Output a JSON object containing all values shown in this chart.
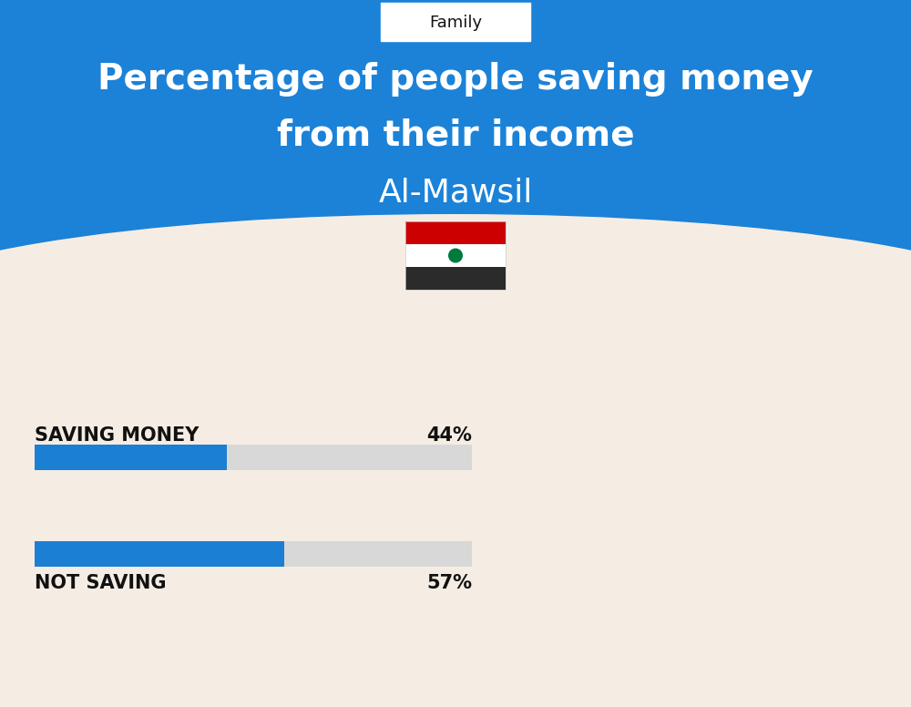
{
  "title_line1": "Percentage of people saving money",
  "title_line2": "from their income",
  "subtitle": "Al-Mawsil",
  "category_label": "Family",
  "bar1_label": "SAVING MONEY",
  "bar1_value": 44,
  "bar1_pct": "44%",
  "bar2_label": "NOT SAVING",
  "bar2_value": 57,
  "bar2_pct": "57%",
  "blue_color": "#1b7fd4",
  "bg_blue": "#1b82d8",
  "bg_cream": "#f5ede3",
  "bar_bg_color": "#d8d8d8",
  "text_color": "#111111",
  "white": "#ffffff",
  "title_fontsize": 28,
  "subtitle_fontsize": 26,
  "label_fontsize": 15,
  "pct_fontsize": 15,
  "category_fontsize": 13,
  "flag_red": "#cc0000",
  "flag_white": "#ffffff",
  "flag_black": "#2b2b2b",
  "flag_green": "#007a3d"
}
